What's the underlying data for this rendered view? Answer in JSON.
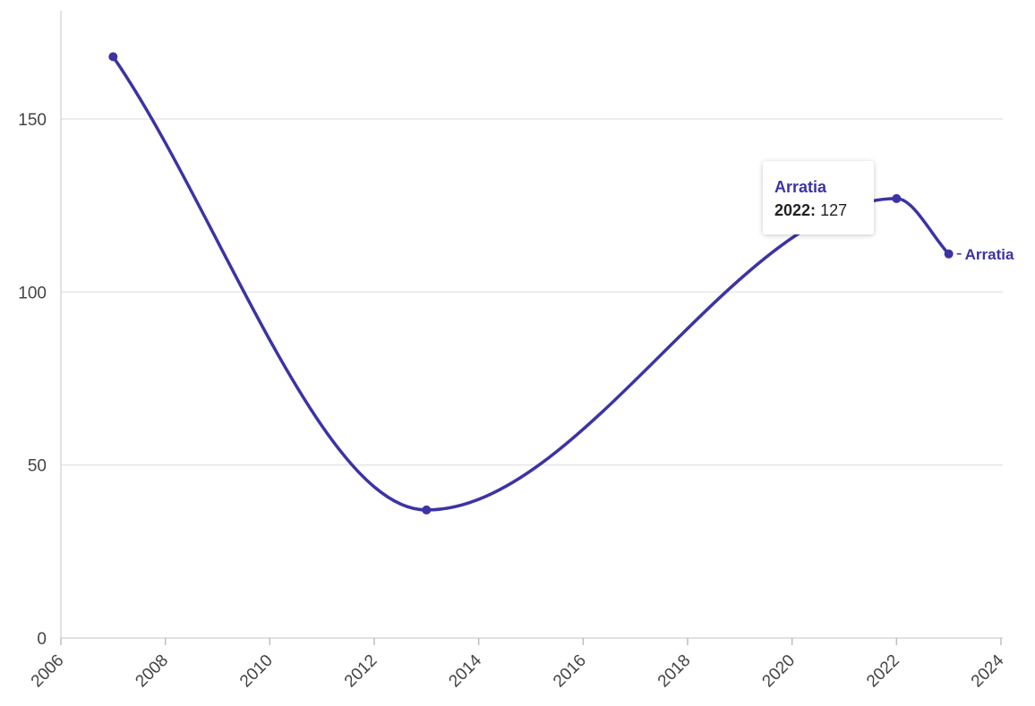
{
  "chart_data": {
    "type": "line",
    "title": "",
    "xlabel": "",
    "ylabel": "",
    "xlim": [
      2006,
      2024
    ],
    "ylim": [
      0,
      170
    ],
    "x_ticks": [
      2006,
      2008,
      2010,
      2012,
      2014,
      2016,
      2018,
      2020,
      2022,
      2024
    ],
    "y_ticks": [
      0,
      50,
      100,
      150
    ],
    "grid": true,
    "series": [
      {
        "name": "Arratia",
        "color": "#3c33a4",
        "points": [
          {
            "x": 2007,
            "y": 168
          },
          {
            "x": 2013,
            "y": 37
          },
          {
            "x": 2022,
            "y": 127
          },
          {
            "x": 2023,
            "y": 111
          }
        ]
      }
    ],
    "end_label": "Arratia"
  },
  "tooltip": {
    "series": "Arratia",
    "year": "2022:",
    "value": "127"
  }
}
